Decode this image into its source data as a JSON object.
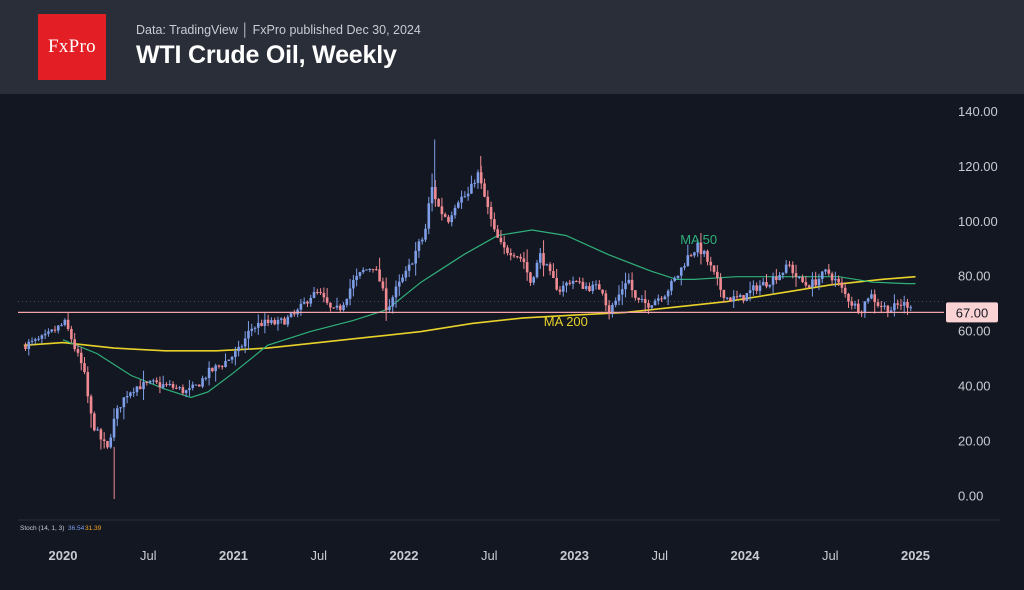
{
  "header": {
    "logo_text": "FxPro",
    "source_text": "Data: TradingView │ FxPro published Dec 30, 2024",
    "title": "WTI Crude Oil, Weekly"
  },
  "colors": {
    "header_bg": "#2a2e39",
    "chart_bg": "#131722",
    "up_candle": "#7e9ee8",
    "down_candle": "#f08a92",
    "ma50": "#2fb07a",
    "ma200": "#e8d22a",
    "price_line": "#f4a3a8",
    "price_badge": "#fbd3d4",
    "axis_text": "#c9cbd2"
  },
  "chart_data": {
    "type": "candlestick",
    "title": "WTI Crude Oil, Weekly",
    "ylim": [
      -10,
      140
    ],
    "y_ticks": [
      "140.00",
      "120.00",
      "100.00",
      "80.00",
      "60.00",
      "40.00",
      "20.00",
      "0.00"
    ],
    "y_tick_values": [
      140,
      120,
      100,
      80,
      60,
      40,
      20,
      0
    ],
    "x_ticks": [
      "2020",
      "Jul",
      "2021",
      "Jul",
      "2022",
      "Jul",
      "2023",
      "Jul",
      "2024",
      "Jul",
      "2025"
    ],
    "x_tick_years": [
      2020.0,
      2020.5,
      2021.0,
      2021.5,
      2022.0,
      2022.5,
      2023.0,
      2023.5,
      2024.0,
      2024.5,
      2025.0
    ],
    "x_range": [
      2019.77,
      2025.2
    ],
    "last_price_label": "67.00",
    "last_price": 67.0,
    "series_anchors": [
      [
        2019.78,
        55
      ],
      [
        2019.85,
        56
      ],
      [
        2019.92,
        58
      ],
      [
        2019.98,
        61
      ],
      [
        2020.03,
        63
      ],
      [
        2020.06,
        59
      ],
      [
        2020.1,
        52
      ],
      [
        2020.14,
        46
      ],
      [
        2020.18,
        30
      ],
      [
        2020.21,
        24
      ],
      [
        2020.25,
        20
      ],
      [
        2020.28,
        17
      ],
      [
        2020.31,
        26
      ],
      [
        2020.35,
        33
      ],
      [
        2020.4,
        38
      ],
      [
        2020.45,
        40
      ],
      [
        2020.55,
        41
      ],
      [
        2020.65,
        40
      ],
      [
        2020.7,
        39
      ],
      [
        2020.75,
        38
      ],
      [
        2020.8,
        40
      ],
      [
        2020.87,
        45
      ],
      [
        2020.95,
        48
      ],
      [
        2021.05,
        53
      ],
      [
        2021.12,
        61
      ],
      [
        2021.18,
        63
      ],
      [
        2021.28,
        63
      ],
      [
        2021.38,
        66
      ],
      [
        2021.47,
        73
      ],
      [
        2021.52,
        74
      ],
      [
        2021.6,
        67
      ],
      [
        2021.65,
        69
      ],
      [
        2021.72,
        78
      ],
      [
        2021.78,
        82
      ],
      [
        2021.84,
        84
      ],
      [
        2021.88,
        78
      ],
      [
        2021.92,
        68
      ],
      [
        2021.97,
        75
      ],
      [
        2022.04,
        82
      ],
      [
        2022.1,
        91
      ],
      [
        2022.14,
        95
      ],
      [
        2022.18,
        113
      ],
      [
        2022.23,
        104
      ],
      [
        2022.28,
        101
      ],
      [
        2022.33,
        108
      ],
      [
        2022.4,
        110
      ],
      [
        2022.45,
        118
      ],
      [
        2022.5,
        107
      ],
      [
        2022.55,
        96
      ],
      [
        2022.6,
        90
      ],
      [
        2022.66,
        89
      ],
      [
        2022.72,
        86
      ],
      [
        2022.76,
        78
      ],
      [
        2022.82,
        88
      ],
      [
        2022.88,
        80
      ],
      [
        2022.93,
        75
      ],
      [
        2023.0,
        79
      ],
      [
        2023.05,
        77
      ],
      [
        2023.12,
        76
      ],
      [
        2023.18,
        76
      ],
      [
        2023.22,
        67
      ],
      [
        2023.27,
        72
      ],
      [
        2023.33,
        80
      ],
      [
        2023.38,
        71
      ],
      [
        2023.45,
        70
      ],
      [
        2023.55,
        74
      ],
      [
        2023.62,
        80
      ],
      [
        2023.68,
        87
      ],
      [
        2023.74,
        91
      ],
      [
        2023.78,
        88
      ],
      [
        2023.82,
        83
      ],
      [
        2023.88,
        75
      ],
      [
        2023.92,
        72
      ],
      [
        2024.0,
        72
      ],
      [
        2024.08,
        76
      ],
      [
        2024.15,
        78
      ],
      [
        2024.22,
        81
      ],
      [
        2024.28,
        84
      ],
      [
        2024.33,
        79
      ],
      [
        2024.38,
        77
      ],
      [
        2024.43,
        78
      ],
      [
        2024.5,
        82
      ],
      [
        2024.56,
        78
      ],
      [
        2024.6,
        74
      ],
      [
        2024.65,
        70
      ],
      [
        2024.7,
        68
      ],
      [
        2024.75,
        74
      ],
      [
        2024.8,
        70
      ],
      [
        2024.87,
        68
      ],
      [
        2024.93,
        70
      ],
      [
        2024.99,
        70
      ]
    ],
    "ma50": [
      [
        2020.0,
        57
      ],
      [
        2020.2,
        52
      ],
      [
        2020.4,
        44
      ],
      [
        2020.6,
        39
      ],
      [
        2020.75,
        36
      ],
      [
        2020.85,
        38
      ],
      [
        2021.0,
        45
      ],
      [
        2021.2,
        55
      ],
      [
        2021.45,
        60
      ],
      [
        2021.7,
        64
      ],
      [
        2021.9,
        68
      ],
      [
        2022.1,
        78
      ],
      [
        2022.35,
        88
      ],
      [
        2022.55,
        95
      ],
      [
        2022.75,
        97
      ],
      [
        2022.95,
        95
      ],
      [
        2023.2,
        88
      ],
      [
        2023.45,
        82
      ],
      [
        2023.6,
        79
      ],
      [
        2023.7,
        79
      ],
      [
        2023.95,
        80
      ],
      [
        2024.15,
        80
      ],
      [
        2024.35,
        80
      ],
      [
        2024.55,
        80
      ],
      [
        2024.75,
        78
      ],
      [
        2024.95,
        77.5
      ],
      [
        2025.0,
        77.5
      ]
    ],
    "ma200": [
      [
        2019.77,
        55
      ],
      [
        2020.0,
        56
      ],
      [
        2020.3,
        54
      ],
      [
        2020.6,
        53
      ],
      [
        2020.9,
        53
      ],
      [
        2021.2,
        54
      ],
      [
        2021.5,
        56
      ],
      [
        2021.8,
        58
      ],
      [
        2022.1,
        60
      ],
      [
        2022.4,
        63
      ],
      [
        2022.7,
        65
      ],
      [
        2023.0,
        66
      ],
      [
        2023.3,
        67
      ],
      [
        2023.6,
        69
      ],
      [
        2023.9,
        71
      ],
      [
        2024.2,
        74
      ],
      [
        2024.5,
        77
      ],
      [
        2024.8,
        79
      ],
      [
        2025.0,
        80
      ]
    ],
    "annotations": [
      {
        "text": "MA 50",
        "x": 2023.62,
        "y": 92,
        "color": "#2fb07a"
      },
      {
        "text": "MA 200",
        "x": 2022.82,
        "y": 62,
        "color": "#e8d22a"
      }
    ],
    "indicator_label": "Stoch (14, 1, 3)",
    "indicator_values": [
      "36.54",
      "31.39"
    ]
  }
}
